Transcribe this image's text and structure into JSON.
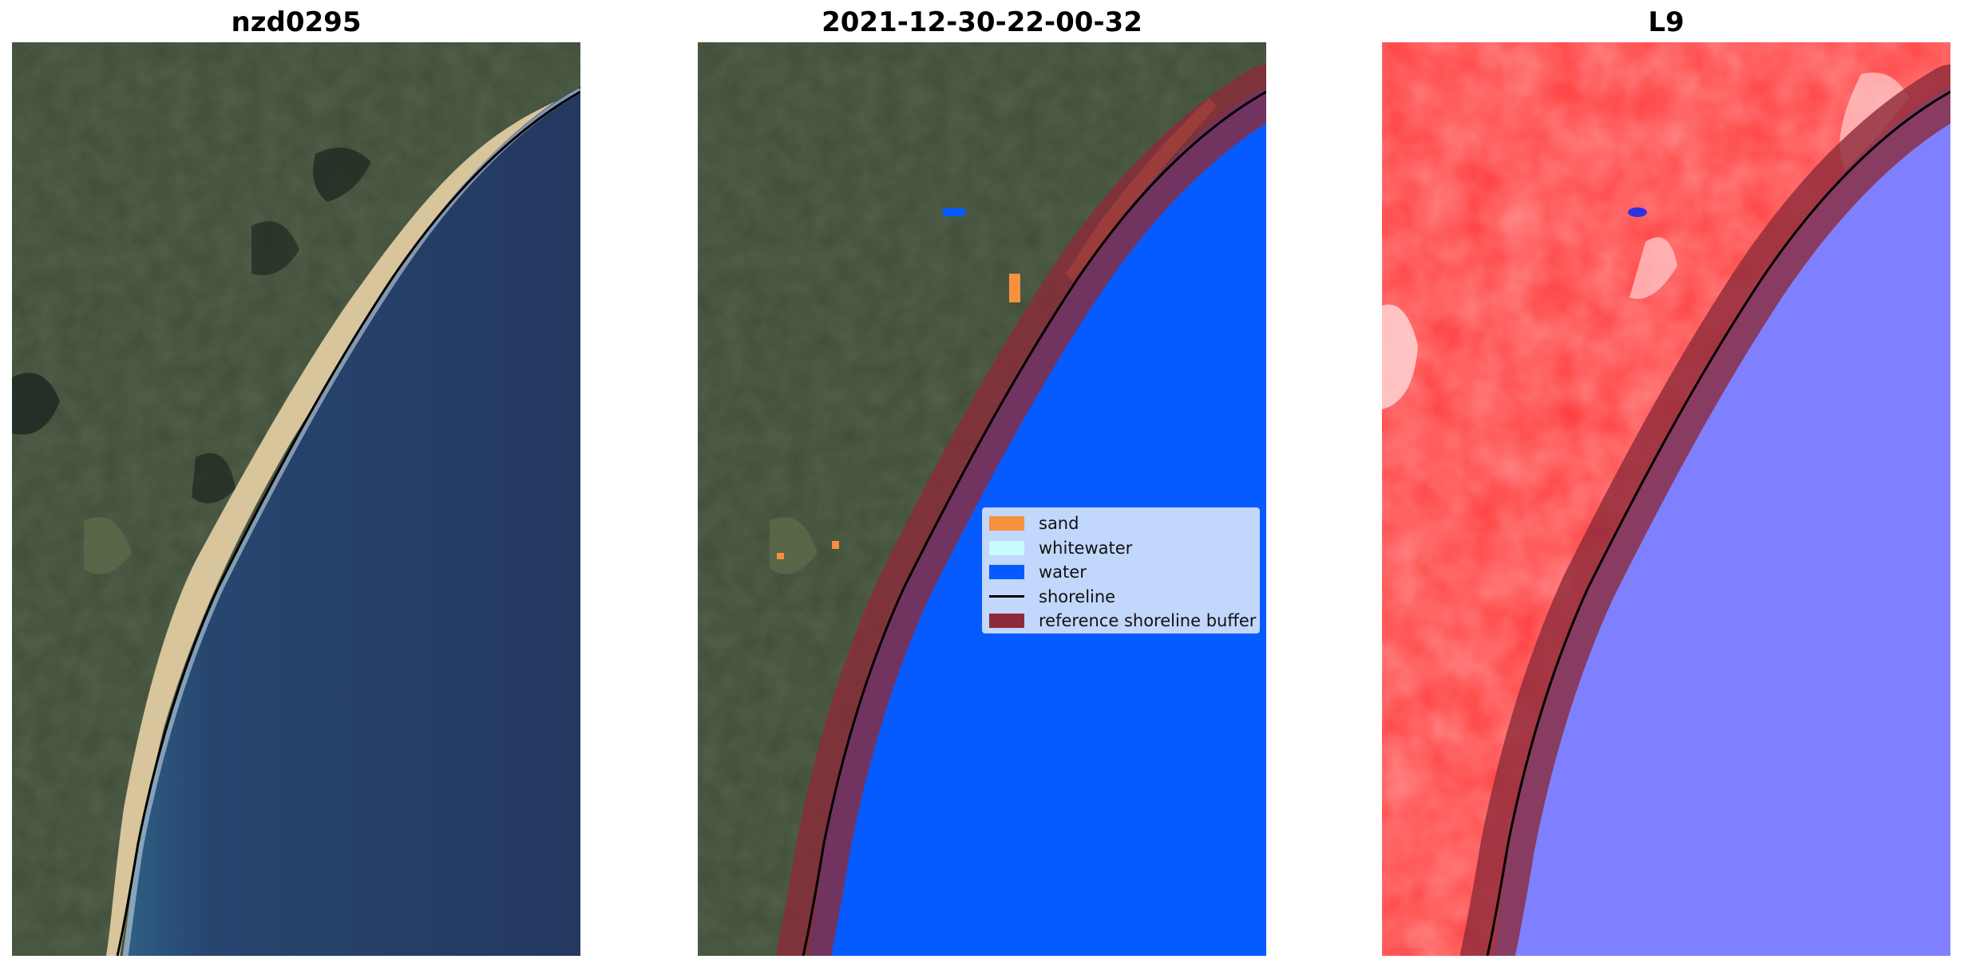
{
  "panels": [
    {
      "title": "nzd0295"
    },
    {
      "title": "2021-12-30-22-00-32"
    },
    {
      "title": "L9"
    }
  ],
  "legend": {
    "items": [
      {
        "label": "sand",
        "kind": "patch",
        "color": "#f7903f"
      },
      {
        "label": "whitewater",
        "kind": "patch",
        "color": "#c9fbff"
      },
      {
        "label": "water",
        "kind": "patch",
        "color": "#055bff"
      },
      {
        "label": "shoreline",
        "kind": "line",
        "color": "#000000"
      },
      {
        "label": "reference shoreline buffer",
        "kind": "patch",
        "color": "#8c2a3a"
      }
    ]
  },
  "colors": {
    "land": "#3e4c38",
    "ocean": "#253a63",
    "class_water": "#055bff",
    "buffer": "#8c2a3a",
    "index_land": "#ff3b3b",
    "index_water": "#7f80ff"
  }
}
